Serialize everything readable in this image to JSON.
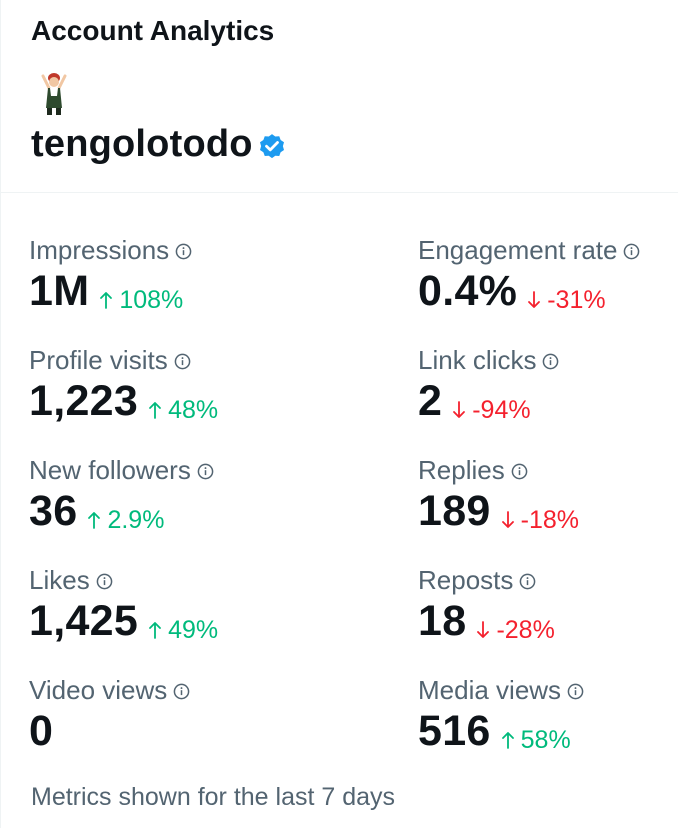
{
  "title": "Account Analytics",
  "handle": "tengolotodo",
  "colors": {
    "up": "#00ba7c",
    "down": "#f4212e",
    "verified": "#1d9bf0"
  },
  "metrics": [
    {
      "label": "Impressions",
      "value": "1M",
      "change": "108%",
      "direction": "up"
    },
    {
      "label": "Engagement rate",
      "value": "0.4%",
      "change": "-31%",
      "direction": "down"
    },
    {
      "label": "Profile visits",
      "value": "1,223",
      "change": "48%",
      "direction": "up"
    },
    {
      "label": "Link clicks",
      "value": "2",
      "change": "-94%",
      "direction": "down"
    },
    {
      "label": "New followers",
      "value": "36",
      "change": "2.9%",
      "direction": "up"
    },
    {
      "label": "Replies",
      "value": "189",
      "change": "-18%",
      "direction": "down"
    },
    {
      "label": "Likes",
      "value": "1,425",
      "change": "49%",
      "direction": "up"
    },
    {
      "label": "Reposts",
      "value": "18",
      "change": "-28%",
      "direction": "down"
    },
    {
      "label": "Video views",
      "value": "0",
      "change": "",
      "direction": "none"
    },
    {
      "label": "Media views",
      "value": "516",
      "change": "58%",
      "direction": "up"
    }
  ],
  "footer": "Metrics shown for the last 7 days"
}
